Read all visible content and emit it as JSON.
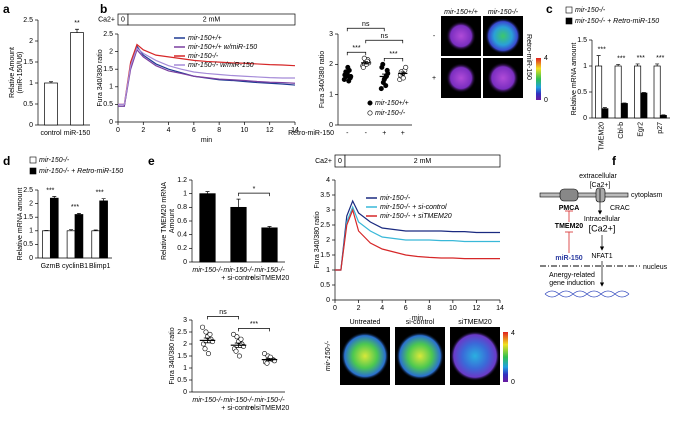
{
  "panel_labels": [
    "a",
    "b",
    "c",
    "d",
    "e",
    "f"
  ],
  "chart_data": [
    {
      "type": "bar",
      "categories": [
        "control",
        "miR-150"
      ],
      "values": [
        1.0,
        2.2
      ],
      "errors": [
        0.03,
        0.08
      ],
      "color": "#ffffff",
      "ylabel": [
        "Relative Amount",
        "(miR-150/U6)"
      ],
      "ylim": [
        0,
        2.5
      ],
      "yticks": [
        0,
        0.5,
        1,
        1.5,
        2,
        2.5
      ],
      "annotations": [
        {
          "text": "**",
          "between": [
            1,
            1
          ]
        }
      ]
    },
    {
      "type": "line",
      "ca_label": "Ca2+",
      "ca_segments": [
        "0",
        "2 mM"
      ],
      "x": [
        0,
        0.5,
        1,
        1.5,
        2,
        3,
        4,
        5,
        6,
        7,
        8,
        9,
        10,
        11,
        12,
        13,
        14
      ],
      "xlim": [
        0,
        14
      ],
      "xticks": [
        0,
        2,
        4,
        6,
        8,
        10,
        12,
        14
      ],
      "xlabel": "min",
      "ylabel": "Fura 340/380 ratio",
      "ylim": [
        0,
        2.5
      ],
      "yticks": [
        0,
        0.5,
        1,
        1.5,
        2,
        2.5
      ],
      "series": [
        {
          "name": "mir-150+/+",
          "color": "#1f3a93",
          "values": [
            0.45,
            0.45,
            1.6,
            2.15,
            1.9,
            1.65,
            1.5,
            1.4,
            1.3,
            1.25,
            1.2,
            1.18,
            1.15,
            1.12,
            1.1,
            1.08,
            1.05
          ]
        },
        {
          "name": "mir-150+/+ w/miR-150",
          "color": "#7b3fa0",
          "values": [
            0.45,
            0.45,
            1.5,
            2.05,
            1.85,
            1.6,
            1.45,
            1.38,
            1.3,
            1.26,
            1.22,
            1.2,
            1.18,
            1.15,
            1.13,
            1.12,
            1.1
          ]
        },
        {
          "name": "mir-150-/-",
          "color": "#d62728",
          "values": [
            0.5,
            0.5,
            1.7,
            2.2,
            2.05,
            1.9,
            1.85,
            1.8,
            1.75,
            1.72,
            1.7,
            1.68,
            1.67,
            1.65,
            1.63,
            1.62,
            1.6
          ]
        },
        {
          "name": "mir-150-/- w/miR-150",
          "color": "#a58bd8",
          "values": [
            0.5,
            0.5,
            1.6,
            2.1,
            1.95,
            1.75,
            1.6,
            1.5,
            1.42,
            1.38,
            1.35,
            1.32,
            1.3,
            1.28,
            1.26,
            1.25,
            1.25
          ]
        }
      ]
    },
    {
      "type": "strip",
      "ylabel": "Fura 340/380 ratio",
      "ylim": [
        0,
        3
      ],
      "yticks": [
        0,
        1,
        2,
        3
      ],
      "categories": [
        "-",
        "-",
        "+",
        "+"
      ],
      "category_label": "Retro-miR-150",
      "series": [
        {
          "name": "mir-150+/+",
          "color": "#000000",
          "points": [
            [
              1.5,
              1.6,
              1.7,
              1.8,
              1.55,
              1.65,
              1.75,
              1.9,
              1.45,
              1.6
            ],
            null,
            [
              1.2,
              1.4,
              1.5,
              1.6,
              1.8,
              1.9,
              2.0,
              1.55,
              1.3,
              1.7
            ],
            null
          ]
        },
        {
          "name": "mir-150-/-",
          "color": "#ffffff",
          "points": [
            null,
            [
              1.95,
              2.0,
              2.1,
              2.15,
              2.05,
              1.9,
              2.2,
              2.0,
              2.1
            ],
            null,
            [
              1.5,
              1.6,
              1.7,
              1.8,
              1.9,
              1.65,
              1.75,
              1.55
            ]
          ]
        }
      ],
      "means": [
        1.65,
        2.05,
        1.6,
        1.7
      ],
      "errors": [
        0.05,
        0.04,
        0.08,
        0.05
      ],
      "annotations": [
        {
          "text": "***",
          "between": [
            0,
            1
          ]
        },
        {
          "text": "***",
          "between": [
            2,
            3
          ]
        },
        {
          "text": "ns",
          "between": [
            1,
            3
          ]
        },
        {
          "text": "ns",
          "between": [
            0,
            2
          ]
        }
      ]
    },
    {
      "type": "bar",
      "categories": [
        "TMEM20",
        "Cbl-b",
        "Egr2",
        "p27"
      ],
      "ylabel": "Relative mRNA amount",
      "ylim": [
        0,
        1.5
      ],
      "yticks": [
        0,
        0.5,
        1,
        1.5
      ],
      "series": [
        {
          "name": "mir-150-/-",
          "color": "#ffffff",
          "values": [
            1,
            1,
            1,
            1
          ],
          "errors": [
            0.2,
            0.03,
            0.04,
            0.04
          ]
        },
        {
          "name": "mir-150-/- + Retro-miR-150",
          "color": "#000000",
          "values": [
            0.18,
            0.28,
            0.48,
            0.05
          ],
          "errors": [
            0.02,
            0.01,
            0.01,
            0.01
          ]
        }
      ],
      "annotations": [
        {
          "text": "***",
          "between": [
            0,
            0
          ]
        },
        {
          "text": "***",
          "between": [
            1,
            1
          ]
        },
        {
          "text": "***",
          "between": [
            2,
            2
          ]
        },
        {
          "text": "***",
          "between": [
            3,
            3
          ]
        }
      ]
    },
    {
      "type": "bar",
      "categories": [
        "GzmB",
        "cyclinB1",
        "Blimp1"
      ],
      "ylabel": "Relative mRNA amount",
      "ylim": [
        0,
        2.5
      ],
      "yticks": [
        0,
        0.5,
        1,
        1.5,
        2,
        2.5
      ],
      "series": [
        {
          "name": "mir-150-/-",
          "color": "#ffffff",
          "values": [
            1,
            1,
            1
          ],
          "errors": [
            0.01,
            0.04,
            0.03
          ]
        },
        {
          "name": "mir-150-/- + Retro-miR-150",
          "color": "#000000",
          "values": [
            2.2,
            1.6,
            2.1
          ],
          "errors": [
            0.06,
            0.04,
            0.08
          ]
        }
      ],
      "annotations": [
        {
          "text": "***",
          "between": [
            0,
            0
          ]
        },
        {
          "text": "***",
          "between": [
            1,
            1
          ]
        },
        {
          "text": "***",
          "between": [
            2,
            2
          ]
        }
      ]
    },
    {
      "type": "bar",
      "categories": [
        "mir-150-/-",
        [
          "mir-150-/-",
          "+ si-control"
        ],
        [
          "mir-150-/-",
          "+ siTMEM20"
        ]
      ],
      "values": [
        1.0,
        0.8,
        0.5
      ],
      "errors": [
        0.03,
        0.12,
        0.02
      ],
      "color": "#000000",
      "ylabel": [
        "Relative TMEM20 mRNA",
        "Amount"
      ],
      "ylim": [
        0,
        1.2
      ],
      "yticks": [
        0,
        0.2,
        0.4,
        0.6,
        0.8,
        1,
        1.2
      ],
      "annotations": [
        {
          "text": "*",
          "between": [
            1,
            2
          ]
        }
      ]
    },
    {
      "type": "line",
      "ca_label": "Ca2+",
      "ca_segments": [
        "0",
        "2 mM"
      ],
      "x": [
        0,
        0.5,
        1,
        1.5,
        2,
        3,
        4,
        5,
        6,
        7,
        8,
        9,
        10,
        11,
        12,
        13,
        14
      ],
      "xlim": [
        0,
        14
      ],
      "xticks": [
        0,
        2,
        4,
        6,
        8,
        10,
        12,
        14
      ],
      "xlabel": "min",
      "ylabel": "Fura 340/380 ratio",
      "ylim": [
        0,
        4
      ],
      "yticks": [
        0,
        0.5,
        1,
        1.5,
        2,
        2.5,
        3,
        3.5,
        4
      ],
      "series": [
        {
          "name": "mir-150-/-",
          "color": "#1a2a80",
          "values": [
            1.0,
            1.0,
            2.8,
            3.3,
            2.9,
            2.6,
            2.4,
            2.35,
            2.3,
            2.3,
            2.3,
            2.3,
            2.28,
            2.28,
            2.25,
            2.25,
            2.25
          ]
        },
        {
          "name": "mir-150-/- + si-control",
          "color": "#39b8d8",
          "values": [
            1.0,
            1.0,
            2.6,
            3.1,
            2.6,
            2.3,
            2.1,
            2.05,
            2.0,
            2.0,
            2.0,
            1.98,
            1.98,
            1.95,
            1.95,
            1.95,
            1.95
          ]
        },
        {
          "name": "mir-150-/- + siTMEM20",
          "color": "#d62728",
          "values": [
            1.0,
            1.0,
            2.5,
            3.0,
            2.3,
            1.9,
            1.7,
            1.6,
            1.5,
            1.45,
            1.42,
            1.4,
            1.4,
            1.38,
            1.38,
            1.38,
            1.38
          ]
        }
      ]
    },
    {
      "type": "strip",
      "ylabel": "Fura 340/380 ratio",
      "ylim": [
        0,
        3
      ],
      "yticks": [
        0,
        0.5,
        1,
        1.5,
        2,
        2.5,
        3
      ],
      "categories": [
        "mir-150-/-",
        [
          "mir-150-/-",
          "+ si-control"
        ],
        [
          "mir-150-/-",
          "+ siTMEM20"
        ]
      ],
      "color": "#ffffff",
      "points": [
        [
          2.7,
          2.5,
          2.3,
          2.2,
          2.1,
          2.0,
          1.8,
          1.6,
          2.4
        ],
        [
          2.4,
          2.3,
          2.1,
          2.0,
          1.9,
          1.8,
          1.7,
          1.5,
          2.2
        ],
        [
          1.6,
          1.5,
          1.4,
          1.35,
          1.3,
          1.25,
          1.2,
          1.45
        ]
      ],
      "means": [
        2.15,
        1.95,
        1.35
      ],
      "errors": [
        0.1,
        0.09,
        0.05
      ],
      "annotations": [
        {
          "text": "***",
          "between": [
            1,
            2
          ]
        },
        {
          "text": "ns",
          "between": [
            0,
            1
          ]
        }
      ]
    }
  ],
  "images": {
    "b": {
      "columns": [
        "mir-150+/+",
        "mir-150-/-"
      ],
      "rows": [
        "-",
        "+"
      ],
      "row_label": "Retro-miR-150",
      "colorbar": [
        4,
        0
      ]
    },
    "e": {
      "columns": [
        "Untreated",
        "si-control",
        "siTMEM20"
      ],
      "row_label": "mir-150-/-",
      "colorbar": [
        4,
        0
      ]
    }
  },
  "diagram": {
    "extracellular": "extracellular",
    "ca_out": "[Ca2+]",
    "cytoplasm": "cytoplasm",
    "pmca": "PMCA",
    "crac": "CRAC",
    "tmem20": "TMEM20",
    "intracellular": "Intracellular",
    "ca_in": "[Ca2+]",
    "mir150": "miR-150",
    "nfat1": "NFAT1",
    "nucleus": "nucleus",
    "gene": [
      "Anergy-related",
      "gene induction"
    ]
  }
}
